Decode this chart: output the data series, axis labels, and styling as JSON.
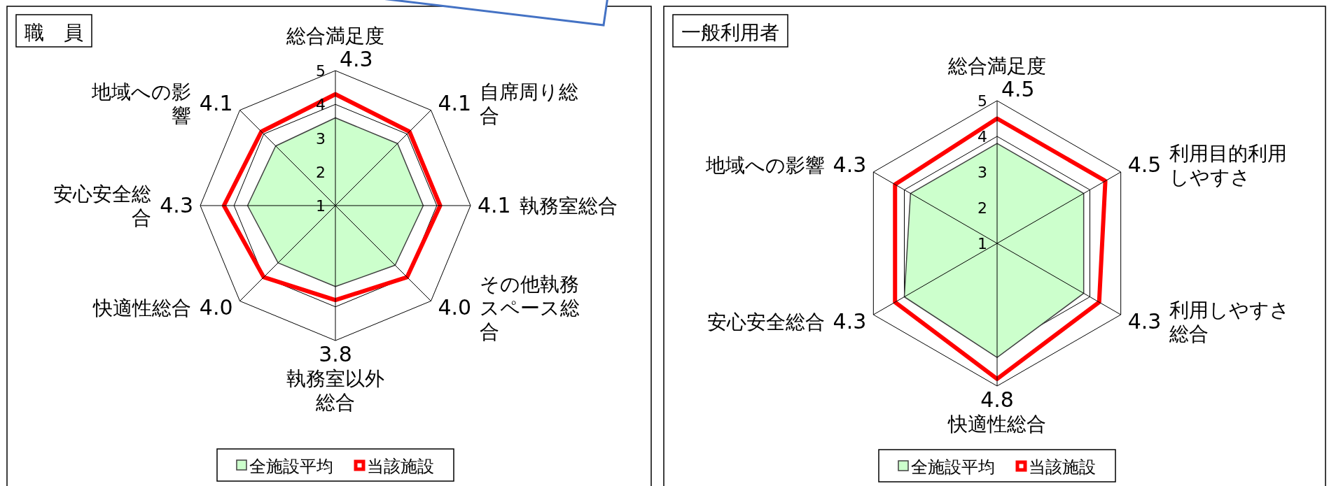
{
  "chart_data": [
    {
      "type": "radar",
      "title": "職　員",
      "categories": [
        "総合満足度",
        "自席周り総合",
        "執務室総合",
        "その他執務スペース総合",
        "執務室以外総合",
        "快適性総合",
        "安心安全総合",
        "地域への影響"
      ],
      "ylim": [
        1,
        5
      ],
      "yticks": [
        1,
        2,
        3,
        4,
        5
      ],
      "grid": true,
      "legend": "bottom",
      "series": [
        {
          "name": "全施設平均",
          "color": "#ccffcc",
          "values": [
            3.6,
            3.6,
            3.6,
            3.5,
            3.4,
            3.4,
            3.6,
            3.5
          ]
        },
        {
          "name": "当該施設",
          "color": "#ff0000",
          "values": [
            4.3,
            4.1,
            4.1,
            4.0,
            3.8,
            4.0,
            4.3,
            4.1
          ],
          "value_labels": [
            "4.3",
            "4.1",
            "4.1",
            "4.0",
            "3.8",
            "4.0",
            "4.3",
            "4.1"
          ]
        }
      ]
    },
    {
      "type": "radar",
      "title": "一般利用者",
      "categories": [
        "総合満足度",
        "利用目的利用しやすさ",
        "利用しやすさ総合",
        "快適性総合",
        "安心安全総合",
        "地域への影響"
      ],
      "ylim": [
        1,
        5
      ],
      "yticks": [
        1,
        2,
        3,
        4,
        5
      ],
      "grid": true,
      "legend": "bottom",
      "series": [
        {
          "name": "全施設平均",
          "color": "#ccffcc",
          "values": [
            3.8,
            3.8,
            3.8,
            4.2,
            4.0,
            3.8
          ]
        },
        {
          "name": "当該施設",
          "color": "#ff0000",
          "values": [
            4.5,
            4.5,
            4.3,
            4.8,
            4.3,
            4.3
          ],
          "value_labels": [
            "4.5",
            "4.5",
            "4.3",
            "4.8",
            "4.3",
            "4.3"
          ]
        }
      ]
    }
  ]
}
